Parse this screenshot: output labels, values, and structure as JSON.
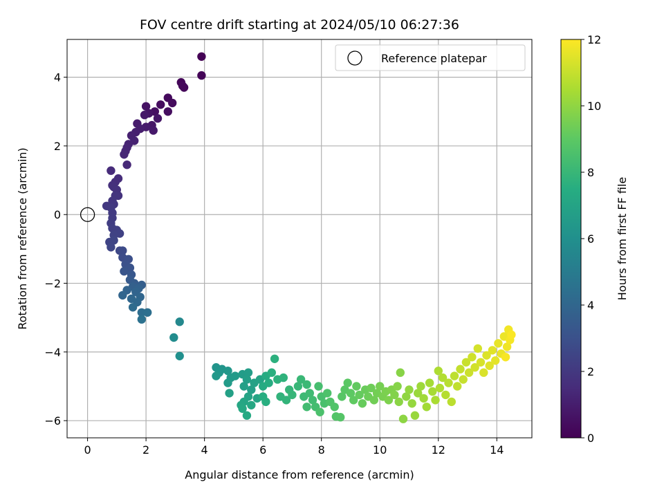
{
  "chart_data": {
    "type": "scatter",
    "title": "FOV centre drift starting at 2024/05/10 06:27:36",
    "xlabel": "Angular distance from reference (arcmin)",
    "ylabel": "Rotation from reference (arcmin)",
    "xlim": [
      -0.7,
      15.2
    ],
    "ylim": [
      -6.5,
      5.1
    ],
    "xticks": [
      "0",
      "2",
      "4",
      "6",
      "8",
      "10",
      "12",
      "14"
    ],
    "xtick_values": [
      0,
      2,
      4,
      6,
      8,
      10,
      12,
      14
    ],
    "yticks": [
      "−6",
      "−4",
      "−2",
      "0",
      "2",
      "4"
    ],
    "ytick_values": [
      -6,
      -4,
      -2,
      0,
      2,
      4
    ],
    "grid": true,
    "legend": {
      "position": "top-right",
      "entries": [
        "Reference platepar"
      ]
    },
    "reference_point": {
      "x": 0,
      "y": 0
    },
    "colorbar": {
      "label": "Hours from first FF file",
      "range": [
        0,
        12
      ],
      "ticks": [
        "0",
        "2",
        "4",
        "6",
        "8",
        "10",
        "12"
      ],
      "tick_values": [
        0,
        2,
        4,
        6,
        8,
        10,
        12
      ],
      "colormap": "viridis"
    },
    "series": [
      {
        "points": [
          {
            "x": 3.9,
            "y": 4.6,
            "c": 0.05
          },
          {
            "x": 3.9,
            "y": 4.05,
            "c": 0.1
          },
          {
            "x": 3.2,
            "y": 3.85,
            "c": 0.15
          },
          {
            "x": 3.3,
            "y": 3.7,
            "c": 0.2
          },
          {
            "x": 3.25,
            "y": 3.75,
            "c": 0.25
          },
          {
            "x": 2.75,
            "y": 3.4,
            "c": 0.3
          },
          {
            "x": 2.9,
            "y": 3.25,
            "c": 0.35
          },
          {
            "x": 2.5,
            "y": 3.2,
            "c": 0.4
          },
          {
            "x": 2.75,
            "y": 3.0,
            "c": 0.45
          },
          {
            "x": 2.3,
            "y": 3.0,
            "c": 0.5
          },
          {
            "x": 2.0,
            "y": 3.15,
            "c": 0.6
          },
          {
            "x": 2.1,
            "y": 2.95,
            "c": 0.65
          },
          {
            "x": 2.4,
            "y": 2.8,
            "c": 0.7
          },
          {
            "x": 2.2,
            "y": 2.6,
            "c": 0.75
          },
          {
            "x": 1.95,
            "y": 2.9,
            "c": 0.8
          },
          {
            "x": 2.25,
            "y": 2.45,
            "c": 0.85
          },
          {
            "x": 2.0,
            "y": 2.55,
            "c": 0.9
          },
          {
            "x": 1.7,
            "y": 2.65,
            "c": 0.95
          },
          {
            "x": 1.8,
            "y": 2.5,
            "c": 1.0
          },
          {
            "x": 1.65,
            "y": 2.4,
            "c": 1.05
          },
          {
            "x": 1.5,
            "y": 2.3,
            "c": 1.1
          },
          {
            "x": 1.6,
            "y": 2.15,
            "c": 1.15
          },
          {
            "x": 1.4,
            "y": 2.05,
            "c": 1.2
          },
          {
            "x": 1.35,
            "y": 1.95,
            "c": 1.25
          },
          {
            "x": 1.3,
            "y": 1.85,
            "c": 1.3
          },
          {
            "x": 1.25,
            "y": 1.75,
            "c": 1.35
          },
          {
            "x": 1.35,
            "y": 1.45,
            "c": 1.4
          },
          {
            "x": 0.8,
            "y": 1.28,
            "c": 1.5
          },
          {
            "x": 1.05,
            "y": 1.05,
            "c": 1.55
          },
          {
            "x": 0.95,
            "y": 0.95,
            "c": 1.6
          },
          {
            "x": 0.85,
            "y": 0.85,
            "c": 1.65
          },
          {
            "x": 0.9,
            "y": 0.8,
            "c": 1.7
          },
          {
            "x": 1.0,
            "y": 0.72,
            "c": 1.75
          },
          {
            "x": 1.05,
            "y": 0.55,
            "c": 1.8
          },
          {
            "x": 0.95,
            "y": 0.55,
            "c": 1.85
          },
          {
            "x": 0.85,
            "y": 0.4,
            "c": 1.9
          },
          {
            "x": 0.9,
            "y": 0.3,
            "c": 1.95
          },
          {
            "x": 0.65,
            "y": 0.25,
            "c": 2.0
          },
          {
            "x": 0.8,
            "y": 0.2,
            "c": 2.05
          },
          {
            "x": 0.85,
            "y": 0.05,
            "c": 2.1
          },
          {
            "x": 0.85,
            "y": -0.1,
            "c": 2.15
          },
          {
            "x": 0.8,
            "y": -0.25,
            "c": 2.2
          },
          {
            "x": 0.85,
            "y": -0.4,
            "c": 2.25
          },
          {
            "x": 1.0,
            "y": -0.45,
            "c": 2.3
          },
          {
            "x": 1.1,
            "y": -0.55,
            "c": 2.35
          },
          {
            "x": 0.9,
            "y": -0.6,
            "c": 2.4
          },
          {
            "x": 0.75,
            "y": -0.8,
            "c": 2.45
          },
          {
            "x": 0.9,
            "y": -0.75,
            "c": 2.5
          },
          {
            "x": 0.8,
            "y": -0.95,
            "c": 2.55
          },
          {
            "x": 1.1,
            "y": -1.05,
            "c": 2.6
          },
          {
            "x": 1.2,
            "y": -1.05,
            "c": 2.7
          },
          {
            "x": 1.2,
            "y": -1.25,
            "c": 2.8
          },
          {
            "x": 1.4,
            "y": -1.3,
            "c": 2.9
          },
          {
            "x": 1.3,
            "y": -1.45,
            "c": 3.0
          },
          {
            "x": 1.45,
            "y": -1.55,
            "c": 3.1
          },
          {
            "x": 1.25,
            "y": -1.65,
            "c": 3.2
          },
          {
            "x": 1.5,
            "y": -1.75,
            "c": 3.3
          },
          {
            "x": 1.45,
            "y": -1.9,
            "c": 3.4
          },
          {
            "x": 1.6,
            "y": -2.0,
            "c": 3.5
          },
          {
            "x": 1.85,
            "y": -2.05,
            "c": 3.6
          },
          {
            "x": 1.55,
            "y": -2.1,
            "c": 3.7
          },
          {
            "x": 1.75,
            "y": -2.15,
            "c": 3.8
          },
          {
            "x": 1.35,
            "y": -2.2,
            "c": 3.85
          },
          {
            "x": 1.65,
            "y": -2.25,
            "c": 3.9
          },
          {
            "x": 1.2,
            "y": -2.35,
            "c": 3.95
          },
          {
            "x": 1.8,
            "y": -2.4,
            "c": 4.0
          },
          {
            "x": 1.5,
            "y": -2.45,
            "c": 4.05
          },
          {
            "x": 1.7,
            "y": -2.55,
            "c": 4.1
          },
          {
            "x": 1.55,
            "y": -2.7,
            "c": 4.2
          },
          {
            "x": 1.85,
            "y": -2.85,
            "c": 4.3
          },
          {
            "x": 2.05,
            "y": -2.85,
            "c": 4.4
          },
          {
            "x": 1.85,
            "y": -3.05,
            "c": 4.5
          },
          {
            "x": 3.15,
            "y": -3.12,
            "c": 5.6
          },
          {
            "x": 2.95,
            "y": -3.58,
            "c": 5.8
          },
          {
            "x": 3.15,
            "y": -4.12,
            "c": 6.0
          },
          {
            "x": 4.4,
            "y": -4.45,
            "c": 6.2
          },
          {
            "x": 4.6,
            "y": -4.5,
            "c": 6.25
          },
          {
            "x": 4.5,
            "y": -4.6,
            "c": 6.3
          },
          {
            "x": 4.8,
            "y": -4.55,
            "c": 6.35
          },
          {
            "x": 4.4,
            "y": -4.7,
            "c": 6.4
          },
          {
            "x": 4.9,
            "y": -4.75,
            "c": 6.45
          },
          {
            "x": 5.05,
            "y": -4.7,
            "c": 6.5
          },
          {
            "x": 4.8,
            "y": -4.9,
            "c": 6.55
          },
          {
            "x": 5.3,
            "y": -4.65,
            "c": 6.6
          },
          {
            "x": 5.5,
            "y": -4.6,
            "c": 6.65
          },
          {
            "x": 5.45,
            "y": -4.8,
            "c": 6.7
          },
          {
            "x": 5.35,
            "y": -5.0,
            "c": 6.75
          },
          {
            "x": 5.6,
            "y": -5.1,
            "c": 6.8
          },
          {
            "x": 4.85,
            "y": -5.2,
            "c": 6.85
          },
          {
            "x": 5.7,
            "y": -4.9,
            "c": 6.9
          },
          {
            "x": 5.9,
            "y": -4.8,
            "c": 6.95
          },
          {
            "x": 5.5,
            "y": -5.3,
            "c": 7.0
          },
          {
            "x": 5.8,
            "y": -5.35,
            "c": 7.05
          },
          {
            "x": 5.35,
            "y": -5.45,
            "c": 7.1
          },
          {
            "x": 5.25,
            "y": -5.55,
            "c": 7.15
          },
          {
            "x": 5.6,
            "y": -5.55,
            "c": 7.2
          },
          {
            "x": 5.3,
            "y": -5.65,
            "c": 7.25
          },
          {
            "x": 5.45,
            "y": -5.85,
            "c": 7.3
          },
          {
            "x": 6.0,
            "y": -5.0,
            "c": 7.35
          },
          {
            "x": 6.1,
            "y": -4.7,
            "c": 7.4
          },
          {
            "x": 6.2,
            "y": -4.9,
            "c": 7.45
          },
          {
            "x": 6.0,
            "y": -5.3,
            "c": 7.5
          },
          {
            "x": 6.1,
            "y": -5.45,
            "c": 7.55
          },
          {
            "x": 6.3,
            "y": -4.6,
            "c": 7.6
          },
          {
            "x": 6.4,
            "y": -4.2,
            "c": 7.65
          },
          {
            "x": 6.5,
            "y": -4.8,
            "c": 7.7
          },
          {
            "x": 6.7,
            "y": -4.75,
            "c": 7.75
          },
          {
            "x": 6.6,
            "y": -5.3,
            "c": 7.8
          },
          {
            "x": 6.8,
            "y": -5.4,
            "c": 7.85
          },
          {
            "x": 6.9,
            "y": -5.1,
            "c": 7.9
          },
          {
            "x": 7.0,
            "y": -5.25,
            "c": 7.95
          },
          {
            "x": 7.2,
            "y": -5.0,
            "c": 8.0
          },
          {
            "x": 7.3,
            "y": -4.8,
            "c": 8.05
          },
          {
            "x": 7.5,
            "y": -4.95,
            "c": 8.1
          },
          {
            "x": 7.4,
            "y": -5.3,
            "c": 8.15
          },
          {
            "x": 7.6,
            "y": -5.2,
            "c": 8.2
          },
          {
            "x": 7.7,
            "y": -5.4,
            "c": 8.25
          },
          {
            "x": 7.5,
            "y": -5.6,
            "c": 8.3
          },
          {
            "x": 7.8,
            "y": -5.6,
            "c": 8.35
          },
          {
            "x": 7.9,
            "y": -5.0,
            "c": 8.4
          },
          {
            "x": 8.0,
            "y": -5.3,
            "c": 8.45
          },
          {
            "x": 8.1,
            "y": -5.5,
            "c": 8.5
          },
          {
            "x": 7.95,
            "y": -5.75,
            "c": 8.55
          },
          {
            "x": 8.2,
            "y": -5.2,
            "c": 8.6
          },
          {
            "x": 8.3,
            "y": -5.45,
            "c": 8.65
          },
          {
            "x": 8.45,
            "y": -5.6,
            "c": 8.7
          },
          {
            "x": 8.5,
            "y": -5.88,
            "c": 8.75
          },
          {
            "x": 8.65,
            "y": -5.9,
            "c": 8.8
          },
          {
            "x": 8.7,
            "y": -5.3,
            "c": 8.85
          },
          {
            "x": 8.8,
            "y": -5.1,
            "c": 8.9
          },
          {
            "x": 8.9,
            "y": -4.9,
            "c": 8.95
          },
          {
            "x": 9.0,
            "y": -5.2,
            "c": 9.0
          },
          {
            "x": 9.1,
            "y": -5.4,
            "c": 9.05
          },
          {
            "x": 9.2,
            "y": -5.0,
            "c": 9.1
          },
          {
            "x": 9.3,
            "y": -5.25,
            "c": 9.15
          },
          {
            "x": 9.4,
            "y": -5.5,
            "c": 9.2
          },
          {
            "x": 9.5,
            "y": -5.1,
            "c": 9.25
          },
          {
            "x": 9.6,
            "y": -5.3,
            "c": 9.3
          },
          {
            "x": 9.7,
            "y": -5.05,
            "c": 9.35
          },
          {
            "x": 9.8,
            "y": -5.4,
            "c": 9.4
          },
          {
            "x": 9.9,
            "y": -5.2,
            "c": 9.45
          },
          {
            "x": 10.0,
            "y": -5.0,
            "c": 9.5
          },
          {
            "x": 10.1,
            "y": -5.3,
            "c": 9.55
          },
          {
            "x": 10.2,
            "y": -5.15,
            "c": 9.6
          },
          {
            "x": 10.3,
            "y": -5.4,
            "c": 9.65
          },
          {
            "x": 10.4,
            "y": -5.1,
            "c": 9.7
          },
          {
            "x": 10.5,
            "y": -5.25,
            "c": 9.75
          },
          {
            "x": 10.6,
            "y": -5.0,
            "c": 9.8
          },
          {
            "x": 10.7,
            "y": -4.6,
            "c": 9.85
          },
          {
            "x": 10.65,
            "y": -5.45,
            "c": 9.9
          },
          {
            "x": 10.8,
            "y": -5.95,
            "c": 9.95
          },
          {
            "x": 10.9,
            "y": -5.3,
            "c": 10.0
          },
          {
            "x": 11.0,
            "y": -5.1,
            "c": 10.05
          },
          {
            "x": 11.1,
            "y": -5.5,
            "c": 10.1
          },
          {
            "x": 11.2,
            "y": -5.85,
            "c": 10.15
          },
          {
            "x": 11.3,
            "y": -5.2,
            "c": 10.2
          },
          {
            "x": 11.4,
            "y": -5.0,
            "c": 10.25
          },
          {
            "x": 11.5,
            "y": -5.35,
            "c": 10.3
          },
          {
            "x": 11.6,
            "y": -5.6,
            "c": 10.35
          },
          {
            "x": 11.7,
            "y": -4.9,
            "c": 10.4
          },
          {
            "x": 11.8,
            "y": -5.15,
            "c": 10.45
          },
          {
            "x": 11.9,
            "y": -5.4,
            "c": 10.5
          },
          {
            "x": 12.0,
            "y": -4.55,
            "c": 10.55
          },
          {
            "x": 12.05,
            "y": -5.05,
            "c": 10.6
          },
          {
            "x": 12.15,
            "y": -4.75,
            "c": 10.65
          },
          {
            "x": 12.25,
            "y": -5.25,
            "c": 10.7
          },
          {
            "x": 12.35,
            "y": -4.9,
            "c": 10.75
          },
          {
            "x": 12.45,
            "y": -5.45,
            "c": 10.8
          },
          {
            "x": 12.55,
            "y": -4.7,
            "c": 10.85
          },
          {
            "x": 12.65,
            "y": -5.0,
            "c": 10.9
          },
          {
            "x": 12.75,
            "y": -4.5,
            "c": 10.95
          },
          {
            "x": 12.85,
            "y": -4.8,
            "c": 11.0
          },
          {
            "x": 12.95,
            "y": -4.3,
            "c": 11.05
          },
          {
            "x": 13.05,
            "y": -4.6,
            "c": 11.1
          },
          {
            "x": 13.15,
            "y": -4.15,
            "c": 11.15
          },
          {
            "x": 13.25,
            "y": -4.45,
            "c": 11.2
          },
          {
            "x": 13.35,
            "y": -3.9,
            "c": 11.25
          },
          {
            "x": 13.45,
            "y": -4.3,
            "c": 11.3
          },
          {
            "x": 13.55,
            "y": -4.6,
            "c": 11.35
          },
          {
            "x": 13.65,
            "y": -4.1,
            "c": 11.4
          },
          {
            "x": 13.75,
            "y": -4.4,
            "c": 11.45
          },
          {
            "x": 13.85,
            "y": -3.95,
            "c": 11.5
          },
          {
            "x": 13.95,
            "y": -4.25,
            "c": 11.55
          },
          {
            "x": 14.05,
            "y": -3.75,
            "c": 11.6
          },
          {
            "x": 14.15,
            "y": -4.05,
            "c": 11.65
          },
          {
            "x": 14.25,
            "y": -3.55,
            "c": 11.7
          },
          {
            "x": 14.35,
            "y": -3.85,
            "c": 11.75
          },
          {
            "x": 14.4,
            "y": -3.35,
            "c": 11.8
          },
          {
            "x": 14.45,
            "y": -3.65,
            "c": 11.85
          },
          {
            "x": 14.3,
            "y": -4.15,
            "c": 11.9
          },
          {
            "x": 14.5,
            "y": -3.5,
            "c": 11.95
          }
        ]
      }
    ]
  }
}
